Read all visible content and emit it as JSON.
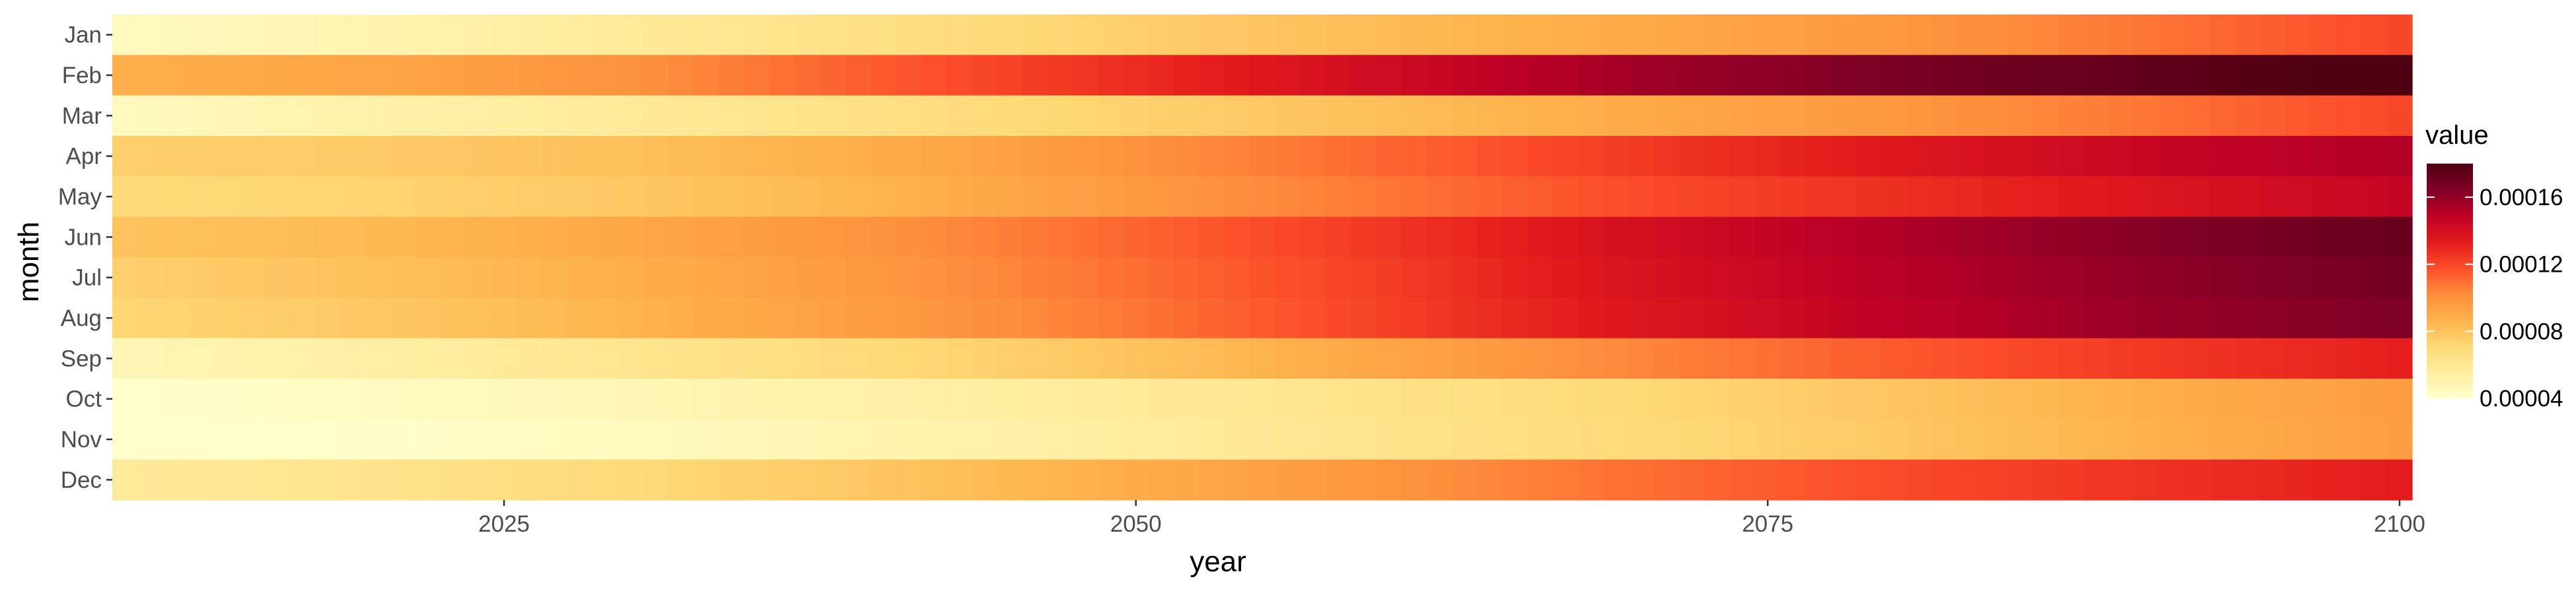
{
  "chart_data": {
    "type": "heatmap",
    "xlabel": "year",
    "ylabel": "month",
    "x_range": [
      2010,
      2100
    ],
    "x_ticks": [
      2025,
      2050,
      2075,
      2100
    ],
    "months": [
      "Jan",
      "Feb",
      "Mar",
      "Apr",
      "May",
      "Jun",
      "Jul",
      "Aug",
      "Sep",
      "Oct",
      "Nov",
      "Dec"
    ],
    "years": [
      2010,
      2020,
      2030,
      2040,
      2050,
      2060,
      2070,
      2080,
      2090,
      2100
    ],
    "values": [
      [
        4.5e-05,
        5e-05,
        5.8e-05,
        6.6e-05,
        7.5e-05,
        8.3e-05,
        9e-05,
        9.8e-05,
        0.000108,
        0.00012
      ],
      [
        8.8e-05,
        9.2e-05,
        0.0001,
        0.000115,
        0.000128,
        0.000142,
        0.000156,
        0.000166,
        0.000174,
        0.000182
      ],
      [
        4.5e-05,
        5.2e-05,
        5.8e-05,
        6.6e-05,
        7.4e-05,
        8.2e-05,
        9e-05,
        9.8e-05,
        0.000108,
        0.00012
      ],
      [
        7.5e-05,
        7.7e-05,
        8.1e-05,
        8.9e-05,
        0.0001,
        0.000112,
        0.000124,
        0.000135,
        0.000145,
        0.000152
      ],
      [
        7e-05,
        7.3e-05,
        7.8e-05,
        8.6e-05,
        9.7e-05,
        0.000108,
        0.000119,
        0.000127,
        0.000136,
        0.000146
      ],
      [
        8e-05,
        8.4e-05,
        9.1e-05,
        0.0001,
        0.000112,
        0.000125,
        0.00014,
        0.000152,
        0.000163,
        0.000172
      ],
      [
        7.5e-05,
        8.1e-05,
        8.8e-05,
        9.8e-05,
        0.00011,
        0.000123,
        0.000138,
        0.00015,
        0.00016,
        0.000168
      ],
      [
        7.2e-05,
        7.8e-05,
        8.6e-05,
        9.6e-05,
        0.000108,
        0.000122,
        0.000136,
        0.000148,
        0.000158,
        0.000165
      ],
      [
        4.8e-05,
        5.4e-05,
        6.2e-05,
        7e-05,
        8e-05,
        9.2e-05,
        0.000104,
        0.000115,
        0.000124,
        0.000132
      ],
      [
        4e-05,
        4.4e-05,
        4.8e-05,
        5.3e-05,
        5.8e-05,
        6.4e-05,
        7.1e-05,
        7.9e-05,
        8.8e-05,
        9.6e-05
      ],
      [
        3.7e-05,
        4.1e-05,
        4.5e-05,
        5e-05,
        5.6e-05,
        6.3e-05,
        7e-05,
        7.8e-05,
        8.7e-05,
        9.5e-05
      ],
      [
        5.8e-05,
        6.3e-05,
        7e-05,
        7.9e-05,
        8.9e-05,
        9.9e-05,
        0.00011,
        0.000119,
        0.000126,
        0.000133
      ]
    ],
    "color_scale": {
      "title": "value",
      "min": 4e-05,
      "max": 0.00018,
      "ticks": [
        4e-05,
        8e-05,
        0.00012,
        0.00016
      ],
      "tick_labels": [
        "0.00004",
        "0.00008",
        "0.00012",
        "0.00016"
      ],
      "colors": [
        "#ffffcc",
        "#ffeda0",
        "#fed976",
        "#feb24c",
        "#fd8d3c",
        "#fc4e2a",
        "#e31a1c",
        "#bd0026",
        "#800026",
        "#4d0012"
      ]
    },
    "legend_position": "right",
    "grid": false
  }
}
